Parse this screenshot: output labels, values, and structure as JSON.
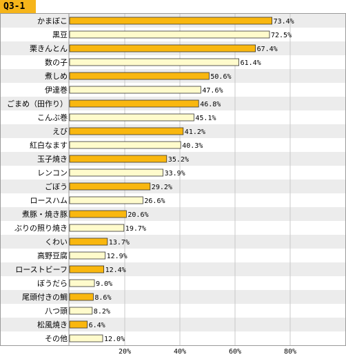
{
  "header": {
    "tag": "Q3-1"
  },
  "chart_data": {
    "type": "bar",
    "orientation": "horizontal",
    "categories": [
      "かまぼこ",
      "黒豆",
      "栗きんとん",
      "数の子",
      "煮しめ",
      "伊達巻",
      "ごまめ（田作り）",
      "こんぶ巻",
      "えび",
      "紅白なます",
      "玉子焼き",
      "レンコン",
      "ごぼう",
      "ロースハム",
      "煮豚・焼き豚",
      "ぶりの照り焼き",
      "くわい",
      "高野豆腐",
      "ローストビーフ",
      "ぼうだら",
      "尾頭付きの鯛",
      "八つ頭",
      "松風焼き",
      "その他"
    ],
    "values": [
      73.4,
      72.5,
      67.4,
      61.4,
      50.6,
      47.6,
      46.8,
      45.1,
      41.2,
      40.3,
      35.2,
      33.9,
      29.2,
      26.6,
      20.6,
      19.7,
      13.7,
      12.9,
      12.4,
      9.0,
      8.6,
      8.2,
      6.4,
      12.0
    ],
    "value_labels": [
      "73.4%",
      "72.5%",
      "67.4%",
      "61.4%",
      "50.6%",
      "47.6%",
      "46.8%",
      "45.1%",
      "41.2%",
      "40.3%",
      "35.2%",
      "33.9%",
      "29.2%",
      "26.6%",
      "20.6%",
      "19.7%",
      "13.7%",
      "12.9%",
      "12.4%",
      "9.0%",
      "8.6%",
      "8.2%",
      "6.4%",
      "12.0%"
    ],
    "xlim": [
      0,
      100
    ],
    "xticks": [
      "20%",
      "40%",
      "60%",
      "80%"
    ],
    "grid": true,
    "colors": {
      "bar_odd": "#f9b70f",
      "bar_even": "#fffbcc",
      "row_alt": "#ececec",
      "grid": "#c8c8c8"
    }
  }
}
